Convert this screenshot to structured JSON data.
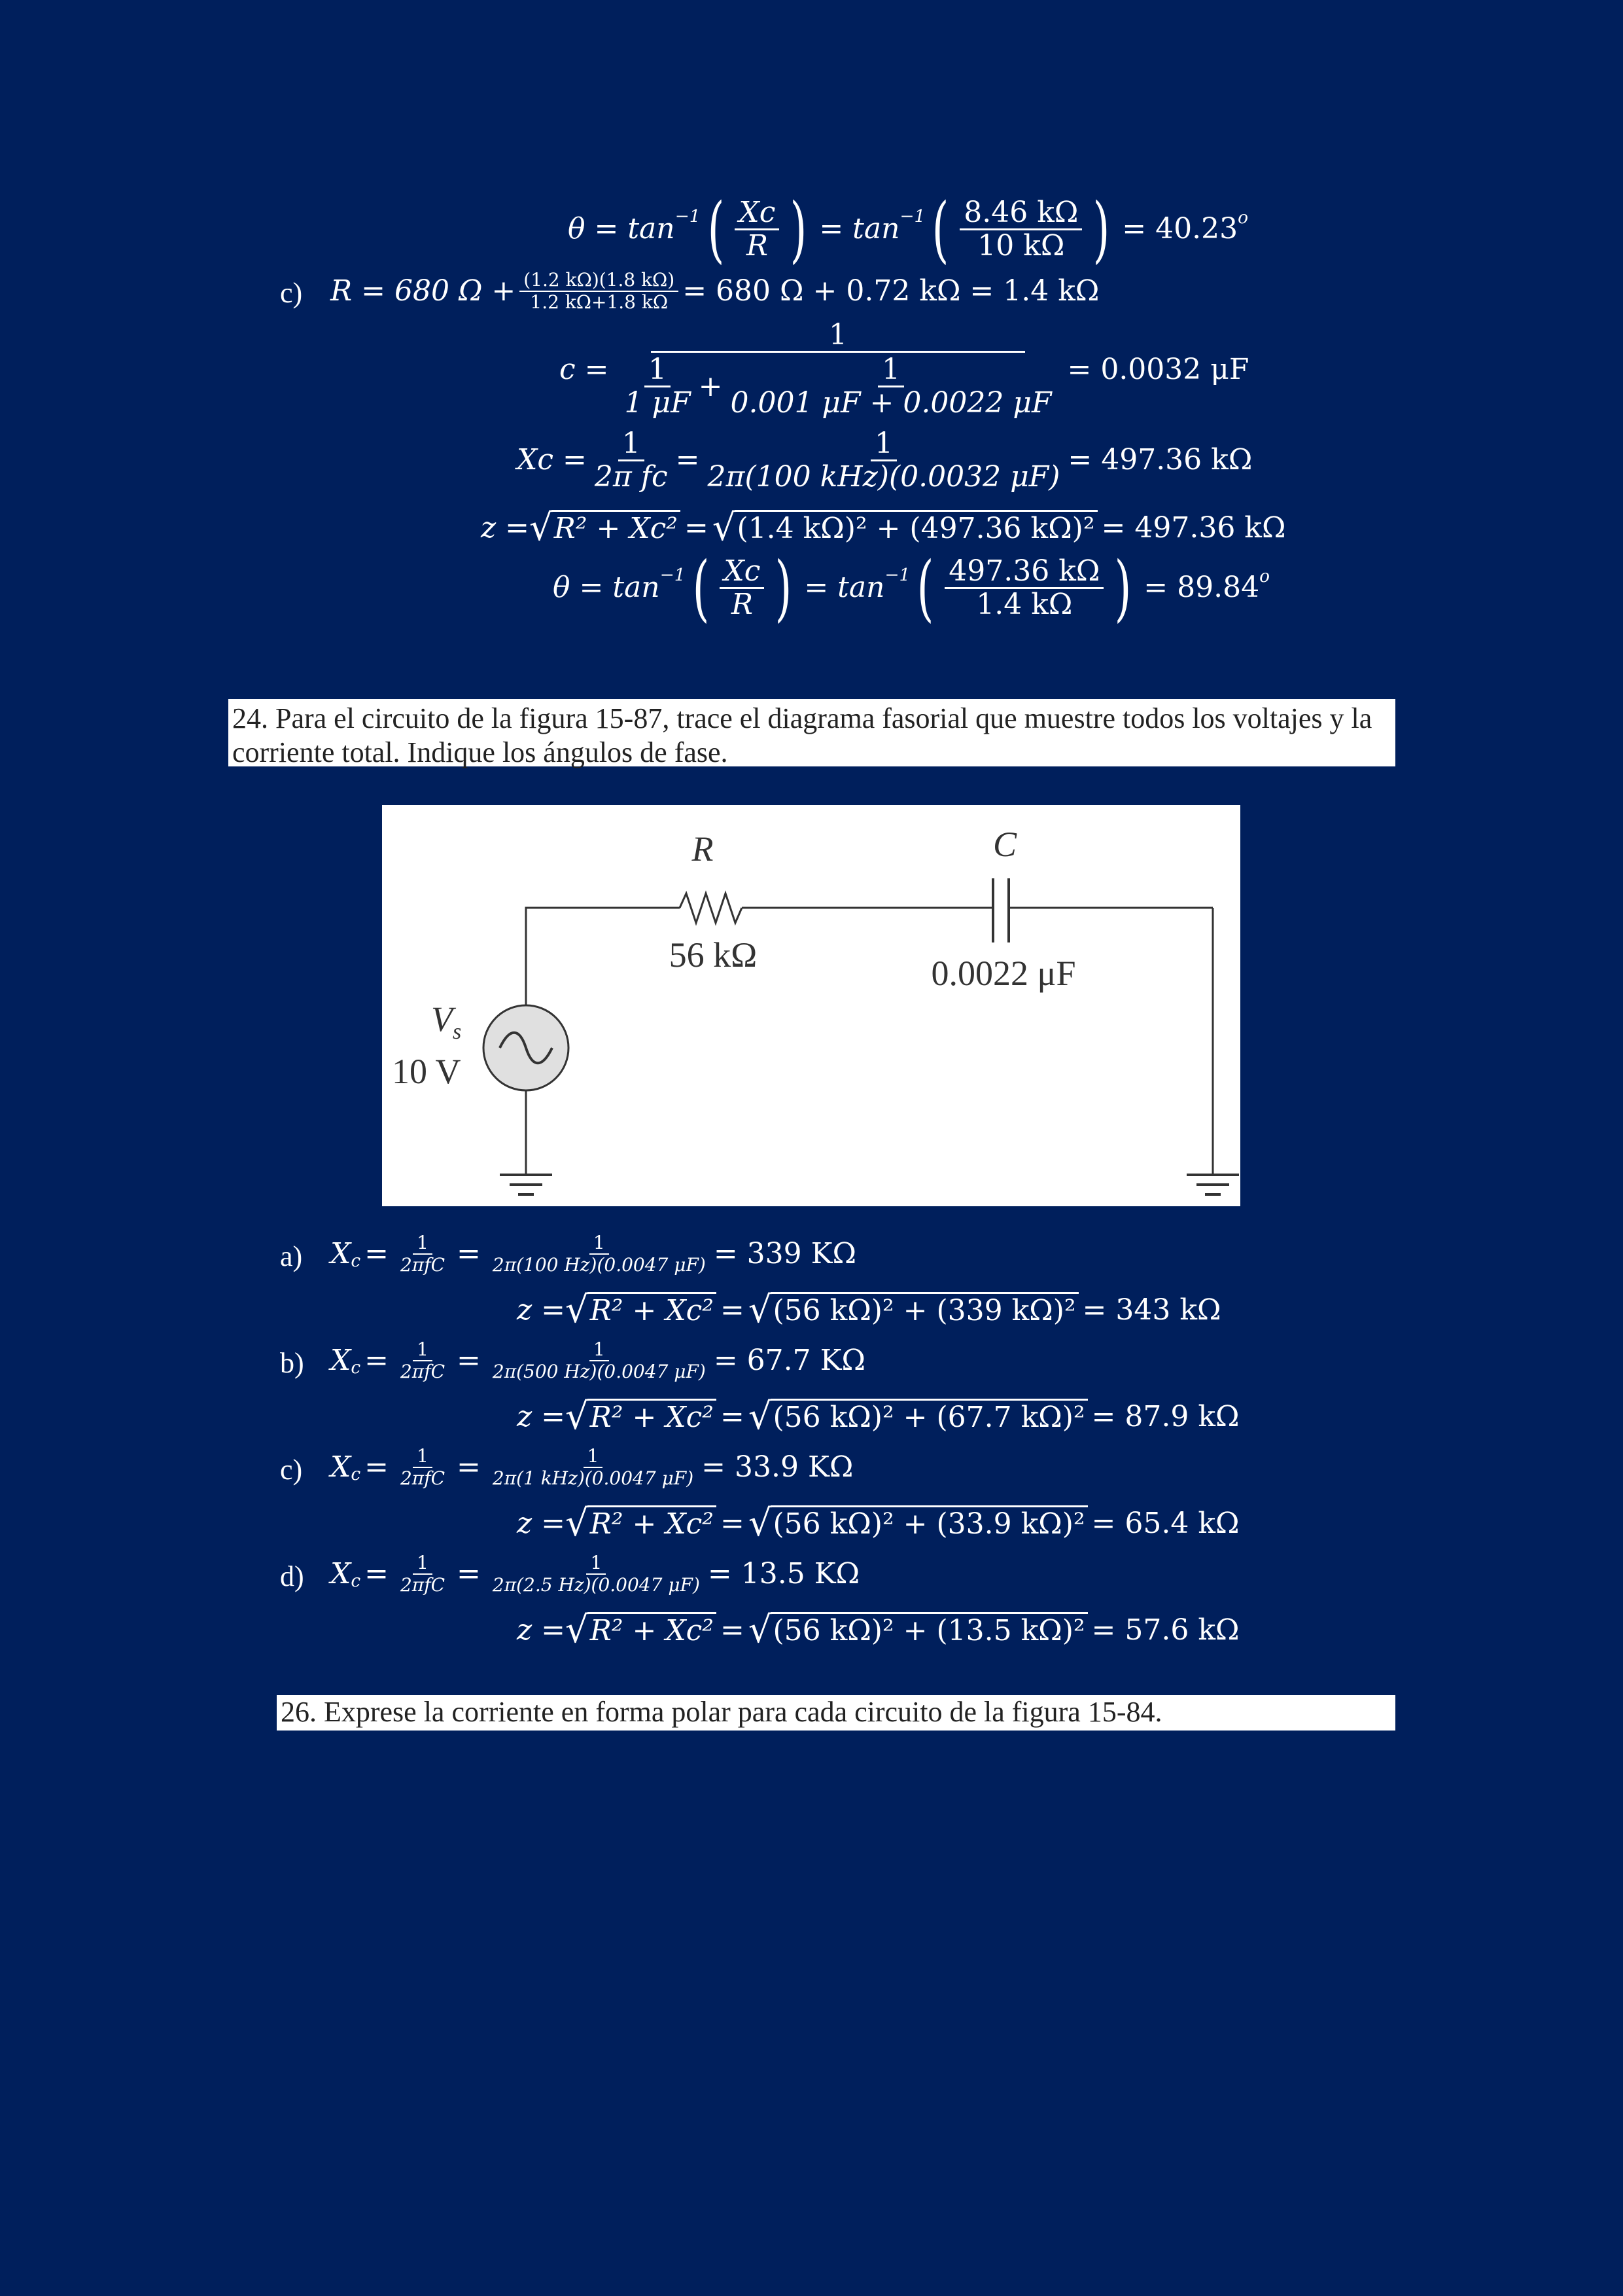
{
  "top": {
    "theta1": {
      "lhs": "θ = tan",
      "exp": "−1",
      "frac_num": "Xc",
      "frac_den": "R",
      "mid": "= tan",
      "frac2_num": "8.46 kΩ",
      "frac2_den": "10 kΩ",
      "result": "= 40.23",
      "deg": "o"
    },
    "c_label": "c)",
    "r_eq": {
      "lhs": "R = 680 Ω +",
      "num": "(1.2 kΩ)(1.8 kΩ)",
      "den": "1.2 kΩ+1.8 kΩ",
      "rhs": "= 680 Ω + 0.72 kΩ = 1.4 kΩ"
    },
    "c_eq": {
      "lhs": "c =",
      "num": "1",
      "d1_num": "1",
      "d1_den": "1 μF",
      "plus": "+",
      "d2_num": "1",
      "d2_den": "0.001 μF + 0.0022 μF",
      "rhs": "= 0.0032 μF"
    },
    "xc_eq": {
      "lhs": "Xc =",
      "f1_num": "1",
      "f1_den": "2π fc",
      "eq": "=",
      "f2_num": "1",
      "f2_den": "2π(100 kHz)(0.0032 μF)",
      "rhs": "= 497.36 kΩ"
    },
    "z_eq": {
      "lhs": "z =",
      "rad1": "R² + Xc²",
      "eq": "=",
      "rad2": "(1.4 kΩ)² + (497.36 kΩ)²",
      "rhs": "= 497.36 kΩ"
    },
    "theta2": {
      "lhs": "θ = tan",
      "exp": "−1",
      "frac_num": "Xc",
      "frac_den": "R",
      "mid": "= tan",
      "frac2_num": "497.36 kΩ",
      "frac2_den": "1.4 kΩ",
      "result": "= 89.84",
      "deg": "o"
    }
  },
  "q24": {
    "text": "24. Para el circuito de la figura 15-87, trace el diagrama fasorial que muestre todos los voltajes y la corriente total. Indique los ángulos de fase."
  },
  "circuit": {
    "r_label": "R",
    "r_value": "56 kΩ",
    "c_label": "C",
    "c_value": "0.0022 μF",
    "vs_label": "V",
    "vs_sub": "s",
    "vs_value": "10 V"
  },
  "answers": [
    {
      "label": "a)",
      "xc_lhs": "X",
      "xc_sub": "c",
      "f1_num": "1",
      "f1_den": "2πfC",
      "f2_num": "1",
      "f2_den": "2π(100 Hz)(0.0047 μF)",
      "xc_result": "= 339 KΩ",
      "z_lhs": "z =",
      "rad1": "R² + Xc²",
      "rad2": "(56 kΩ)² + (339 kΩ)²",
      "z_result": "= 343 kΩ"
    },
    {
      "label": "b)",
      "xc_lhs": "X",
      "xc_sub": "c",
      "f1_num": "1",
      "f1_den": "2πfC",
      "f2_num": "1",
      "f2_den": "2π(500 Hz)(0.0047 μF)",
      "xc_result": "= 67.7 KΩ",
      "z_lhs": "z =",
      "rad1": "R² + Xc²",
      "rad2": "(56 kΩ)² + (67.7 kΩ)²",
      "z_result": "= 87.9 kΩ"
    },
    {
      "label": "c)",
      "xc_lhs": "X",
      "xc_sub": "c",
      "f1_num": "1",
      "f1_den": "2πfC",
      "f2_num": "1",
      "f2_den": "2π(1 kHz)(0.0047 μF)",
      "xc_result": "= 33.9 KΩ",
      "z_lhs": "z =",
      "rad1": "R² + Xc²",
      "rad2": "(56 kΩ)² + (33.9 kΩ)²",
      "z_result": "= 65.4 kΩ"
    },
    {
      "label": "d)",
      "xc_lhs": "X",
      "xc_sub": "c",
      "f1_num": "1",
      "f1_den": "2πfC",
      "f2_num": "1",
      "f2_den": "2π(2.5 Hz)(0.0047 μF)",
      "xc_result": "= 13.5 KΩ",
      "z_lhs": "z =",
      "rad1": "R² + Xc²",
      "rad2": "(56 kΩ)² + (13.5 kΩ)²",
      "z_result": "= 57.6 kΩ"
    }
  ],
  "q26": {
    "text": "26. Exprese la corriente en forma polar para cada circuito de la figura 15-84."
  },
  "colors": {
    "page_bg": "#001f5c",
    "text": "#ffffff",
    "box_bg": "#ffffff"
  }
}
